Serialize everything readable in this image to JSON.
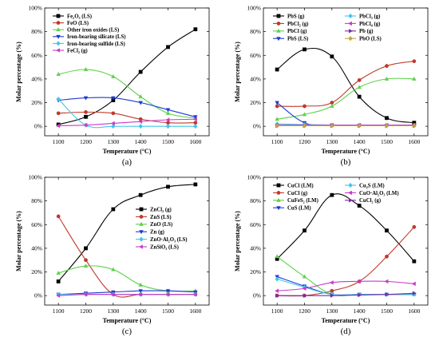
{
  "figure": {
    "background": "#ffffff"
  },
  "chart_data": [
    {
      "id": "a",
      "type": "line",
      "panel_label": "(a)",
      "xlabel": "Temperature (°C)",
      "ylabel": "Molar percentage (%)",
      "x": [
        1100,
        1200,
        1300,
        1400,
        1500,
        1600
      ],
      "xlim": [
        1050,
        1650
      ],
      "ylim": [
        -8,
        100
      ],
      "yticks": [
        0,
        20,
        40,
        60,
        80,
        100
      ],
      "yticklabels": [
        "0%",
        "20%",
        "40%",
        "60%",
        "80%",
        "100%"
      ],
      "legend_position": "top-left",
      "grid": false,
      "series": [
        {
          "name": "Fe₂O₃ (LS)",
          "color": "#000000",
          "marker": "square",
          "values": [
            1.5,
            8,
            22,
            46,
            67,
            82
          ]
        },
        {
          "name": "FeO (LS)",
          "color": "#c0392b",
          "marker": "circle",
          "values": [
            11,
            12,
            11,
            6,
            3,
            3
          ]
        },
        {
          "name": "Other iron oxides (LS)",
          "color": "#5fd14c",
          "marker": "triangle-up",
          "values": [
            44,
            48,
            42,
            25,
            11,
            7
          ]
        },
        {
          "name": "Iron-bearing silicate (LS)",
          "color": "#1a3ad6",
          "marker": "triangle-down",
          "values": [
            22,
            24,
            24,
            20,
            14,
            8
          ]
        },
        {
          "name": "Iron-bearing sulfide (LS)",
          "color": "#3fc6e8",
          "marker": "diamond",
          "values": [
            23,
            1,
            0,
            0,
            0,
            0
          ]
        },
        {
          "name": "FeCl₂ (g)",
          "color": "#c93ac9",
          "marker": "triangle-left",
          "values": [
            0.5,
            1,
            2.5,
            4,
            5.5,
            6
          ]
        }
      ]
    },
    {
      "id": "b",
      "type": "line",
      "panel_label": "(b)",
      "xlabel": "Temperature (°C)",
      "ylabel": "Molar percentage (%)",
      "x": [
        1100,
        1200,
        1300,
        1400,
        1500,
        1600
      ],
      "xlim": [
        1050,
        1650
      ],
      "ylim": [
        -8,
        100
      ],
      "yticks": [
        0,
        20,
        40,
        60,
        80,
        100
      ],
      "yticklabels": [
        "0%",
        "20%",
        "40%",
        "60%",
        "80%",
        "100%"
      ],
      "legend_position": "top",
      "grid": false,
      "series": [
        {
          "name": "PbS (g)",
          "color": "#000000",
          "marker": "square",
          "values": [
            48,
            65,
            59,
            25,
            7,
            3
          ]
        },
        {
          "name": "PbCl₂ (g)",
          "color": "#c0392b",
          "marker": "circle",
          "values": [
            17,
            17,
            20,
            39,
            51,
            55
          ]
        },
        {
          "name": "PbCl (g)",
          "color": "#5fd14c",
          "marker": "triangle-up",
          "values": [
            6,
            10,
            17,
            33,
            40,
            40
          ]
        },
        {
          "name": "PbS (LS)",
          "color": "#1a3ad6",
          "marker": "triangle-down",
          "values": [
            20,
            3,
            1,
            0.5,
            0.5,
            0.5
          ]
        },
        {
          "name": "PbCl₃ (g)",
          "color": "#3fc6e8",
          "marker": "diamond",
          "values": [
            2,
            1.5,
            1,
            1,
            1,
            1
          ]
        },
        {
          "name": "PbCl₄ (g)",
          "color": "#c93ac9",
          "marker": "triangle-left",
          "values": [
            1,
            1,
            1,
            1,
            1,
            1
          ]
        },
        {
          "name": "Pb (g)",
          "color": "#7a2aa8",
          "marker": "triangle-right",
          "values": [
            0.5,
            0.5,
            0.5,
            0.5,
            0.5,
            0.5
          ]
        },
        {
          "name": "PbO (LS)",
          "color": "#c6a23a",
          "marker": "diamond",
          "values": [
            0.5,
            0.5,
            0.5,
            0.5,
            0.5,
            0.5
          ]
        }
      ]
    },
    {
      "id": "c",
      "type": "line",
      "panel_label": "(c)",
      "xlabel": "Temperature (°C)",
      "ylabel": "Molar percentage (%)",
      "x": [
        1100,
        1200,
        1300,
        1400,
        1500,
        1600
      ],
      "xlim": [
        1050,
        1650
      ],
      "ylim": [
        -8,
        100
      ],
      "yticks": [
        0,
        20,
        40,
        60,
        80,
        100
      ],
      "yticklabels": [
        "0%",
        "20%",
        "40%",
        "60%",
        "80%",
        "100%"
      ],
      "legend_position": "right",
      "grid": false,
      "series": [
        {
          "name": "ZnCl₂ (g)",
          "color": "#000000",
          "marker": "square",
          "values": [
            12,
            40,
            73,
            85,
            92,
            94
          ]
        },
        {
          "name": "ZnS (LS)",
          "color": "#c0392b",
          "marker": "circle",
          "values": [
            67,
            30,
            1,
            1,
            1,
            1
          ]
        },
        {
          "name": "ZnO (LS)",
          "color": "#5fd14c",
          "marker": "triangle-up",
          "values": [
            19,
            25,
            22,
            9,
            4,
            4
          ]
        },
        {
          "name": "Zn (g)",
          "color": "#1a3ad6",
          "marker": "triangle-down",
          "values": [
            1,
            2,
            3,
            4,
            4,
            3
          ]
        },
        {
          "name": "ZnO·Al₂O₃ (LS)",
          "color": "#3fc6e8",
          "marker": "diamond",
          "values": [
            1,
            1,
            1,
            1,
            1,
            1
          ]
        },
        {
          "name": "ZnSiO₃ (LS)",
          "color": "#c93ac9",
          "marker": "triangle-left",
          "values": [
            0,
            1,
            1,
            1,
            1,
            1
          ]
        }
      ]
    },
    {
      "id": "d",
      "type": "line",
      "panel_label": "(d)",
      "xlabel": "Temperature (°C)",
      "ylabel": "Molar percentage (%)",
      "x": [
        1100,
        1200,
        1300,
        1400,
        1500,
        1600
      ],
      "xlim": [
        1050,
        1650
      ],
      "ylim": [
        -8,
        100
      ],
      "yticks": [
        0,
        20,
        40,
        60,
        80,
        100
      ],
      "yticklabels": [
        "0%",
        "20%",
        "40%",
        "60%",
        "80%",
        "100%"
      ],
      "legend_position": "top",
      "grid": false,
      "series": [
        {
          "name": "CuCl (LM)",
          "color": "#000000",
          "marker": "square",
          "values": [
            31,
            55,
            85,
            76,
            55,
            29
          ]
        },
        {
          "name": "CuCl (g)",
          "color": "#c0392b",
          "marker": "circle",
          "values": [
            0,
            0,
            4,
            12,
            33,
            58
          ]
        },
        {
          "name": "CuFeS₂ (LM)",
          "color": "#5fd14c",
          "marker": "triangle-up",
          "values": [
            33,
            16,
            1,
            1,
            1,
            1
          ]
        },
        {
          "name": "CuS (LM)",
          "color": "#1a3ad6",
          "marker": "triangle-down",
          "values": [
            16,
            8,
            1,
            1,
            1,
            1
          ]
        },
        {
          "name": "Cu₂S (LM)",
          "color": "#3fc6e8",
          "marker": "diamond",
          "values": [
            14,
            7,
            1,
            1,
            1,
            1
          ]
        },
        {
          "name": "CuO·Al₂O₃ (LM)",
          "color": "#c93ac9",
          "marker": "triangle-left",
          "values": [
            4,
            6,
            11,
            12,
            12,
            10
          ]
        },
        {
          "name": "CuCl₂ (g)",
          "color": "#7a2aa8",
          "marker": "triangle-right",
          "values": [
            0,
            0,
            0,
            0.5,
            1,
            2
          ]
        }
      ]
    }
  ]
}
